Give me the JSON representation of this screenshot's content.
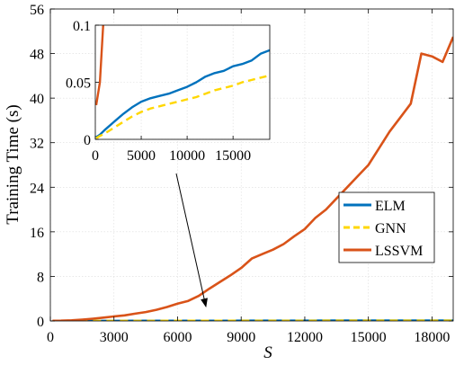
{
  "chart_data": {
    "type": "line",
    "xlabel": "S",
    "ylabel": "Training Time (s)",
    "xlim": [
      0,
      19000
    ],
    "ylim": [
      0,
      56
    ],
    "xticks": [
      0,
      3000,
      6000,
      9000,
      12000,
      15000,
      18000
    ],
    "yticks": [
      0,
      8,
      16,
      24,
      32,
      40,
      48,
      56
    ],
    "grid": true,
    "legend": "right",
    "series": [
      {
        "name": "ELM",
        "color": "#0072BD",
        "style": "solid",
        "x": [
          100,
          500,
          1000,
          2000,
          3000,
          4000,
          5000,
          6000,
          7000,
          8000,
          9000,
          10000,
          11000,
          12000,
          13000,
          14000,
          15000,
          16000,
          17000,
          18000,
          19000
        ],
        "y": [
          0.002,
          0.004,
          0.008,
          0.015,
          0.022,
          0.028,
          0.033,
          0.036,
          0.038,
          0.04,
          0.043,
          0.046,
          0.05,
          0.055,
          0.058,
          0.06,
          0.064,
          0.066,
          0.069,
          0.075,
          0.078
        ]
      },
      {
        "name": "GNN",
        "color": "#FFD700",
        "style": "dashed",
        "x": [
          100,
          500,
          1000,
          2000,
          3000,
          4000,
          5000,
          6000,
          7000,
          8000,
          9000,
          10000,
          11000,
          12000,
          13000,
          14000,
          15000,
          16000,
          17000,
          18000,
          19000
        ],
        "y": [
          0.001,
          0.003,
          0.005,
          0.01,
          0.015,
          0.02,
          0.024,
          0.027,
          0.029,
          0.031,
          0.033,
          0.035,
          0.037,
          0.04,
          0.043,
          0.045,
          0.047,
          0.05,
          0.052,
          0.054,
          0.056
        ]
      },
      {
        "name": "LSSVM",
        "color": "#D95319",
        "style": "solid",
        "x": [
          100,
          500,
          1000,
          1500,
          2000,
          2500,
          3000,
          3500,
          4000,
          4500,
          5000,
          5500,
          6000,
          6500,
          7000,
          7500,
          8000,
          8500,
          9000,
          9500,
          10000,
          10500,
          11000,
          11500,
          12000,
          12500,
          13000,
          13500,
          14000,
          14500,
          15000,
          15500,
          16000,
          16500,
          17000,
          17500,
          18000,
          18500,
          19000
        ],
        "y": [
          0.03,
          0.05,
          0.12,
          0.25,
          0.4,
          0.6,
          0.8,
          1.0,
          1.3,
          1.6,
          2.0,
          2.5,
          3.1,
          3.6,
          4.5,
          5.8,
          7.0,
          8.2,
          9.5,
          11.2,
          12.0,
          12.8,
          13.8,
          15.2,
          16.5,
          18.5,
          20.0,
          22.0,
          24.0,
          26.0,
          28.0,
          31.0,
          34.0,
          36.5,
          39.0,
          48.0,
          47.5,
          46.5,
          51.0
        ]
      }
    ],
    "inset": {
      "xlim": [
        0,
        19000
      ],
      "ylim": [
        0,
        0.1
      ],
      "xticks": [
        0,
        5000,
        10000,
        15000
      ],
      "xtick_labels": [
        "0",
        "5000",
        "10000",
        "15000"
      ],
      "yticks": [
        0,
        0.05,
        0.1
      ],
      "ytick_labels": [
        "0",
        "0.05",
        "0.1"
      ]
    }
  }
}
